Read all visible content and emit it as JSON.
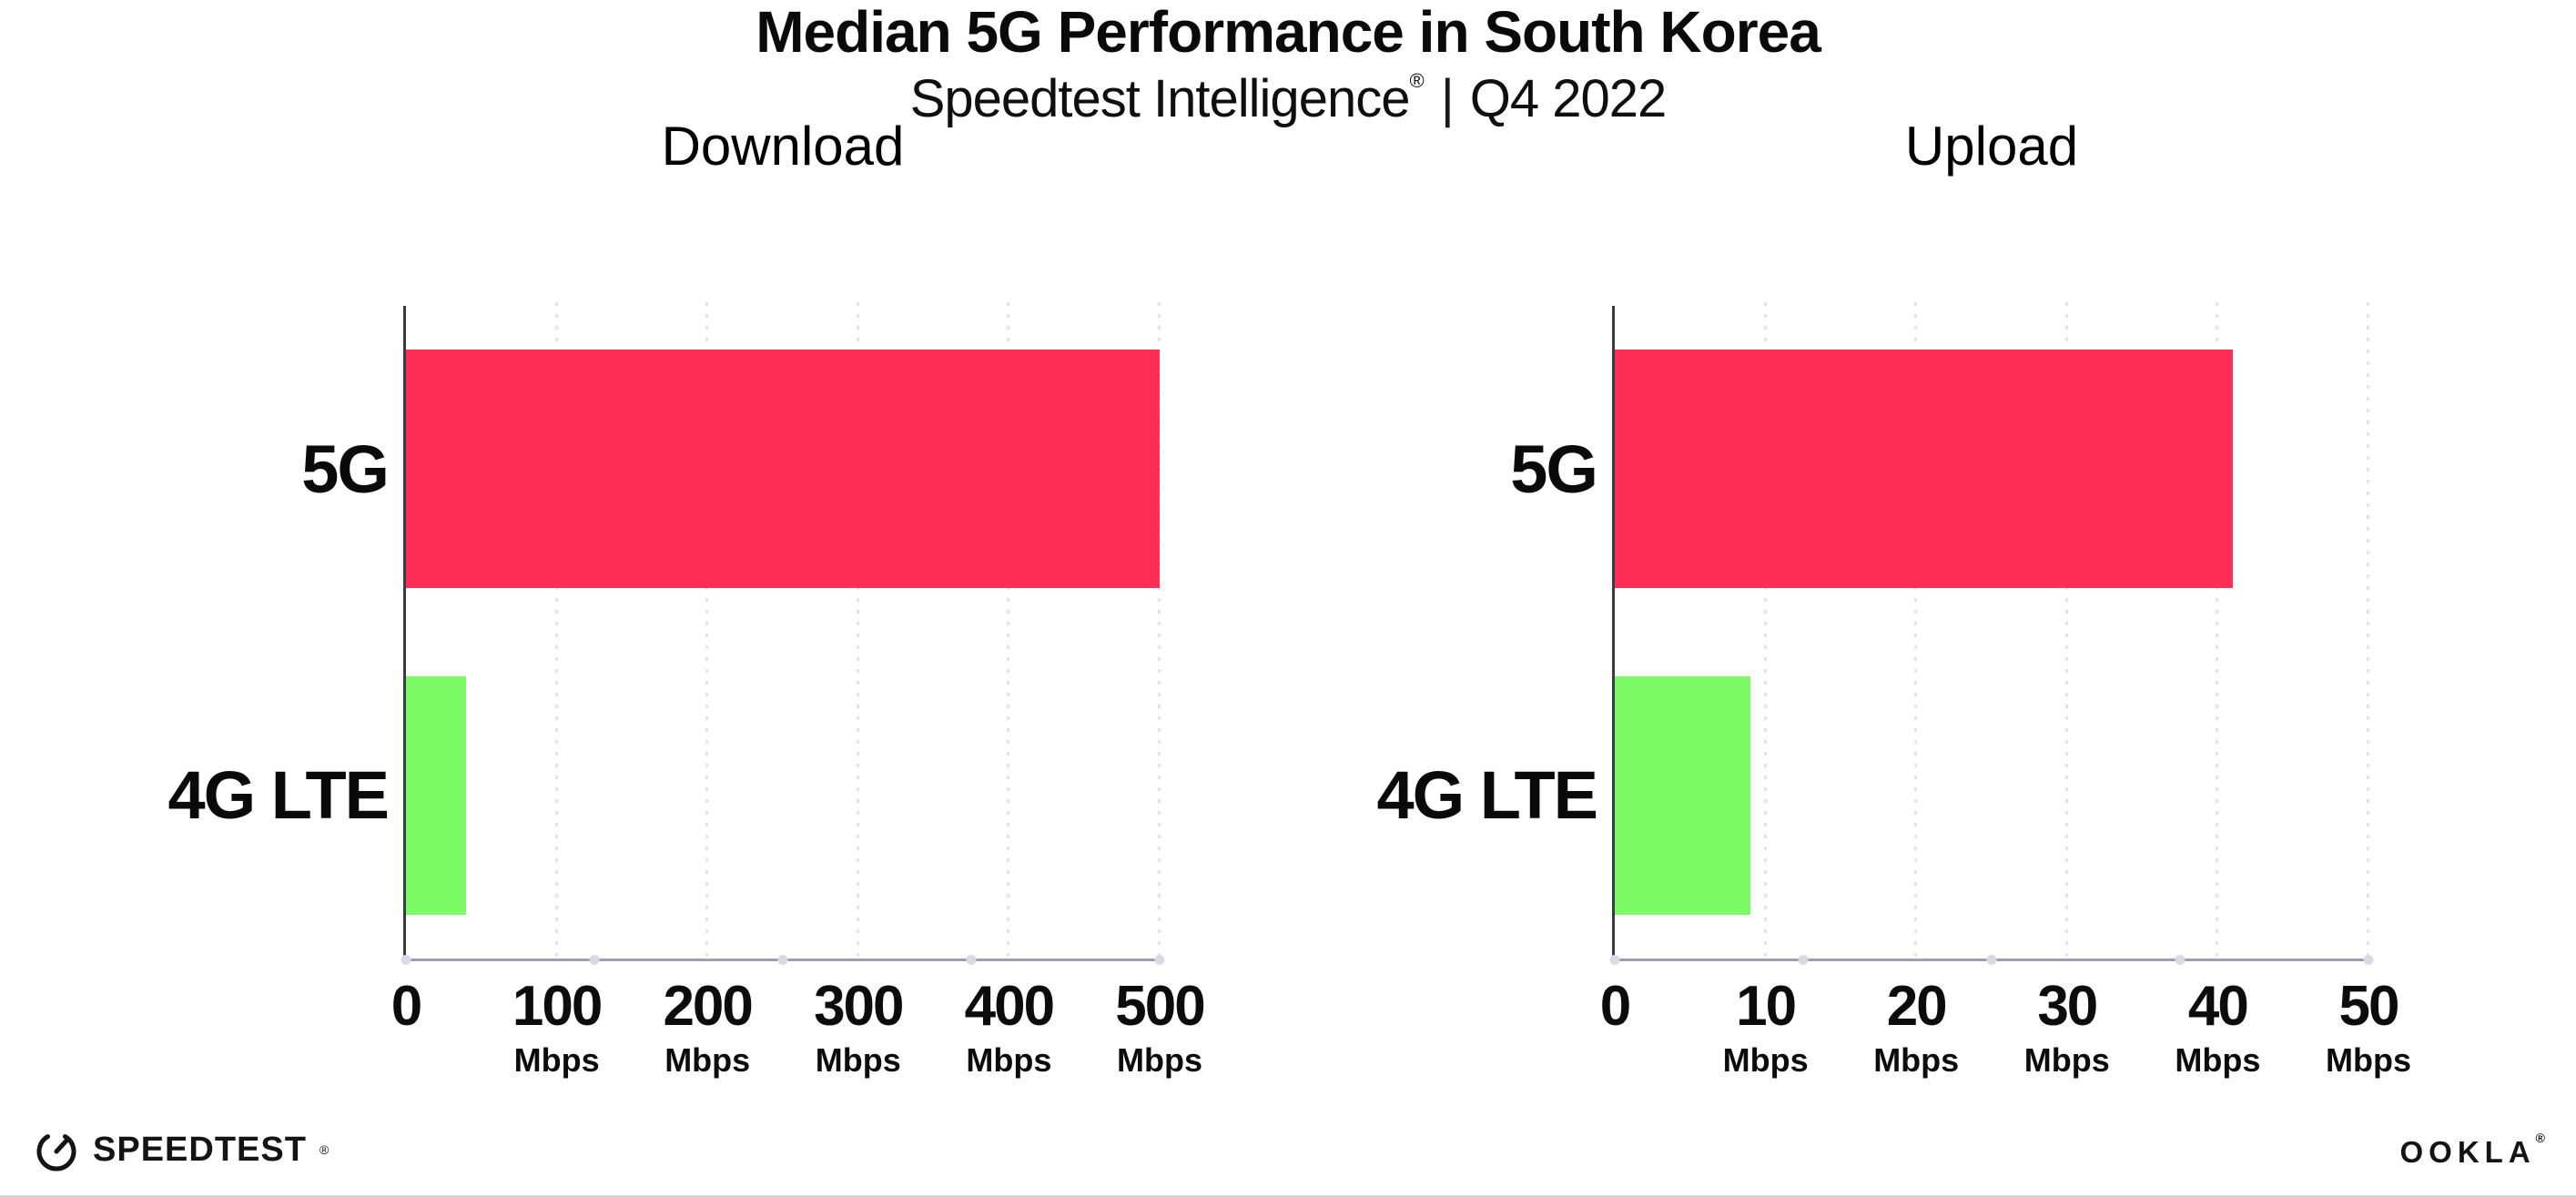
{
  "header": {
    "title": "Median 5G Performance in South Korea",
    "subtitle": {
      "brand": "Speedtest Intelligence",
      "reg": "®",
      "separator": "|",
      "period": "Q4 2022"
    }
  },
  "chart_data": [
    {
      "type": "bar",
      "orientation": "horizontal",
      "title": "Download",
      "categories": [
        "5G",
        "4G LTE"
      ],
      "values": [
        500,
        40
      ],
      "unit": "Mbps",
      "bar_colors": [
        "#ff2e57",
        "#7cfa63"
      ],
      "xlim": [
        0,
        500
      ],
      "xticks": [
        0,
        100,
        200,
        300,
        400,
        500
      ],
      "grid": "dotted-vertical-light",
      "legend": "none"
    },
    {
      "type": "bar",
      "orientation": "horizontal",
      "title": "Upload",
      "categories": [
        "5G",
        "4G LTE"
      ],
      "values": [
        41,
        9
      ],
      "unit": "Mbps",
      "bar_colors": [
        "#ff2e57",
        "#7cfa63"
      ],
      "xlim": [
        0,
        50
      ],
      "xticks": [
        0,
        10,
        20,
        30,
        40,
        50
      ],
      "grid": "dotted-vertical-light",
      "legend": "none"
    }
  ],
  "footer": {
    "speedtest_label": "SPEEDTEST",
    "speedtest_reg": "®",
    "ookla_label": "OOKLA",
    "ookla_reg": "®"
  }
}
